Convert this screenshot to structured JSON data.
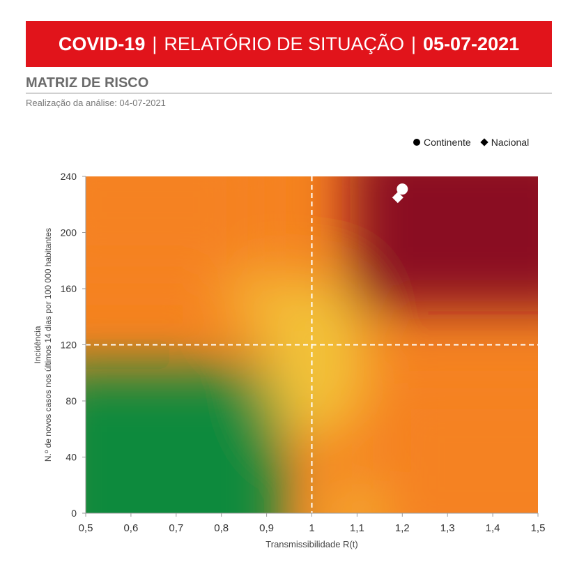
{
  "header": {
    "title_left": "COVID-19",
    "title_middle": "RELATÓRIO DE SITUAÇÃO",
    "title_right": "05-07-2021",
    "separator": "|",
    "background_color": "#e1141b"
  },
  "section": {
    "title": "MATRIZ DE RISCO",
    "subtitle": "Realização da análise: 04-07-2021"
  },
  "chart_data": {
    "type": "scatter",
    "xlabel": "Transmissibilidade R(t)",
    "ylabel_line1": "Incidência",
    "ylabel_line2": "N.º de novos casos nos últimos 14 dias por 100 000 habitantes",
    "xlim": [
      0.5,
      1.5
    ],
    "ylim": [
      0,
      240
    ],
    "x_ticks": [
      "0,5",
      "0,6",
      "0,7",
      "0,8",
      "0,9",
      "1",
      "1,1",
      "1,2",
      "1,3",
      "1,4",
      "1,5"
    ],
    "y_ticks": [
      "0",
      "40",
      "80",
      "120",
      "160",
      "200",
      "240"
    ],
    "x_tick_values": [
      0.5,
      0.6,
      0.7,
      0.8,
      0.9,
      1.0,
      1.1,
      1.2,
      1.3,
      1.4,
      1.5
    ],
    "y_tick_values": [
      0,
      40,
      80,
      120,
      160,
      200,
      240
    ],
    "thresholds": {
      "x": 1.0,
      "y": 120
    },
    "legend_position": "top-right",
    "series": [
      {
        "name": "Continente",
        "marker": "circle",
        "x": 1.2,
        "y": 231
      },
      {
        "name": "Nacional",
        "marker": "diamond",
        "x": 1.19,
        "y": 225
      }
    ],
    "colors": {
      "green": "#0a8a3c",
      "yellow": "#f2c53a",
      "orange": "#f58220",
      "darkred": "#8a0a23",
      "gridline": "#ffffff"
    }
  }
}
